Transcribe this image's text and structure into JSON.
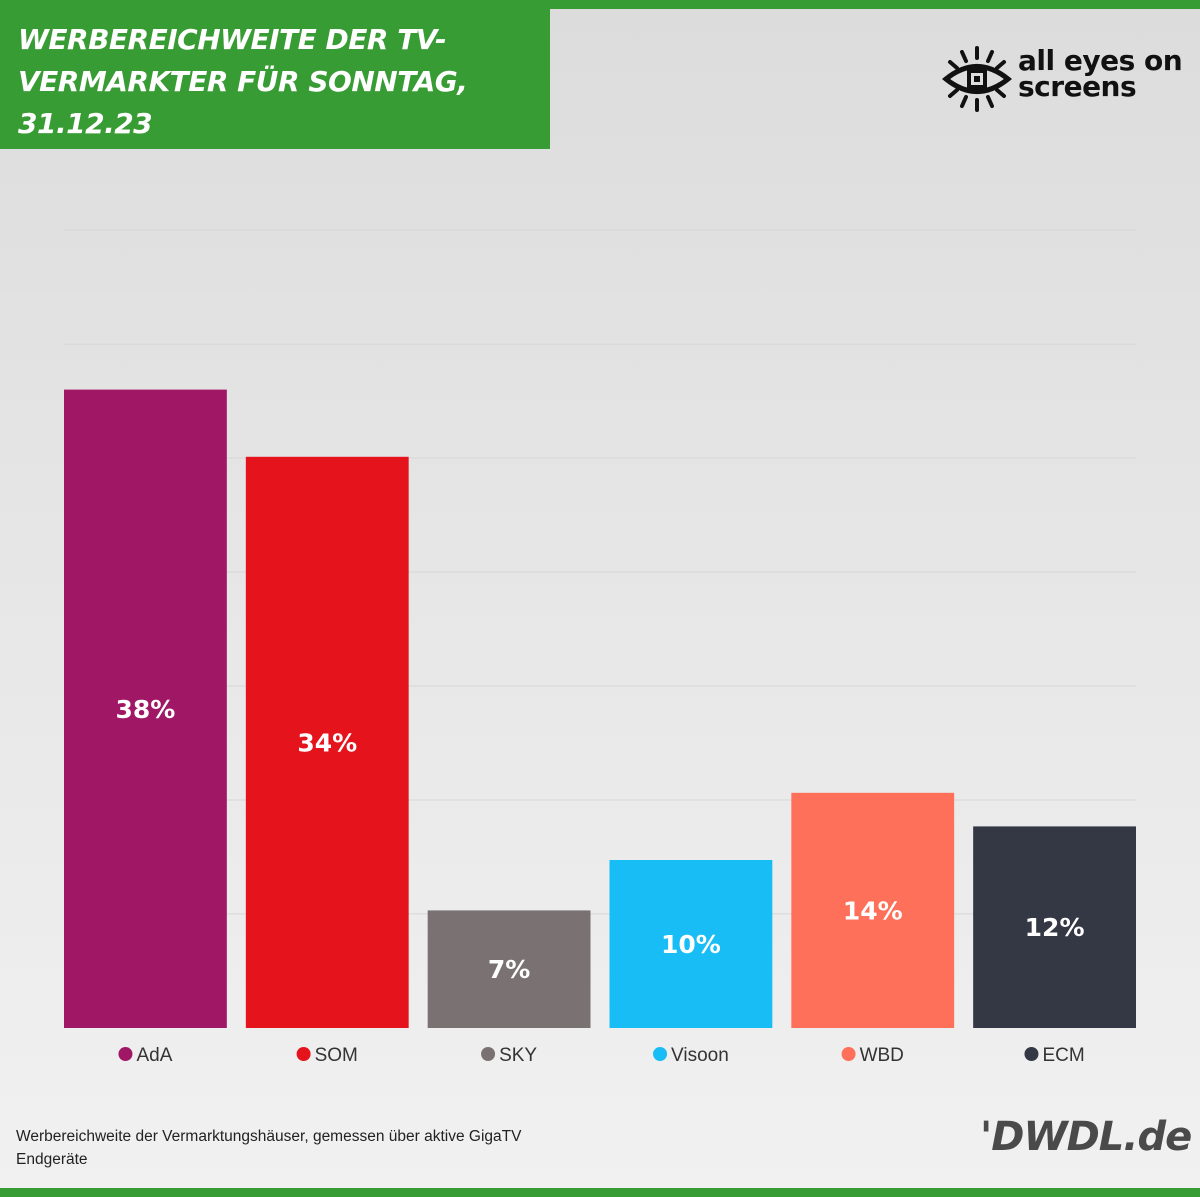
{
  "header": {
    "title_lines": [
      "WERBEREICHWEITE DER TV-",
      "VERMARKTER FÜR SONNTAG,",
      "31.12.23"
    ],
    "logo_lines": [
      "all eyes on",
      "screens"
    ],
    "logo_icon": "eye-icon"
  },
  "footer": {
    "note_lines": [
      "Werbereichweite der Vermarktungshäuser, gemessen über aktive GigaTV",
      "Endgeräte"
    ],
    "source": "'DWDL.de"
  },
  "colors": {
    "header_green": "#389c34",
    "data_label": "#ffffff",
    "grid": "#d6d6d6"
  },
  "chart_data": {
    "type": "bar",
    "categories": [
      "AdA",
      "SOM",
      "SKY",
      "Visoon",
      "WBD",
      "ECM"
    ],
    "values": [
      38,
      34,
      7,
      10,
      14,
      12
    ],
    "data_labels": [
      "38%",
      "34%",
      "7%",
      "10%",
      "14%",
      "12%"
    ],
    "colors": [
      "#a01865",
      "#e5131b",
      "#7a7272",
      "#19bdf5",
      "#ff705a",
      "#343744"
    ],
    "legend_placement": "bottom",
    "ylim": [
      0,
      47.5
    ],
    "gridlines": [
      6.79,
      13.57,
      20.36,
      27.14,
      33.93,
      40.71,
      47.5
    ],
    "grid": true,
    "title": "",
    "xlabel": "",
    "ylabel": ""
  }
}
